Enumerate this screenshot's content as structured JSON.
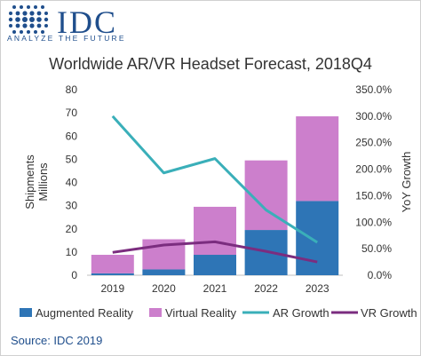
{
  "logo": {
    "word": "IDC",
    "tagline": "ANALYZE THE FUTURE"
  },
  "source": "Source: IDC 2019",
  "colors": {
    "ar": "#2e75b6",
    "vr": "#cc7fcc",
    "ar_growth": "#3aafb9",
    "vr_growth": "#7b2d7f",
    "brand": "#1f4e8c"
  },
  "chart_data": {
    "type": "bar",
    "title": "Worldwide AR/VR Headset Forecast, 2018Q4",
    "categories": [
      "2019",
      "2020",
      "2021",
      "2022",
      "2023"
    ],
    "ylabel": "Shipments\nMillions",
    "y2label": "YoY Growth",
    "ylim": [
      0,
      80
    ],
    "y2lim": [
      0,
      350
    ],
    "yticks": [
      "0",
      "10",
      "20",
      "30",
      "40",
      "50",
      "60",
      "70",
      "80"
    ],
    "y2ticks": [
      "0.0%",
      "50.0%",
      "100.0%",
      "150.0%",
      "200.0%",
      "250.0%",
      "300.0%",
      "350.0%"
    ],
    "stacked": true,
    "series": [
      {
        "name": "Augmented Reality",
        "kind": "bar",
        "axis": "left",
        "values": [
          0.8,
          2.5,
          8.8,
          19.5,
          32.0
        ]
      },
      {
        "name": "Virtual Reality",
        "kind": "bar",
        "axis": "left",
        "values": [
          8.0,
          13.0,
          20.7,
          30.0,
          36.5
        ]
      },
      {
        "name": "AR Growth",
        "kind": "line",
        "axis": "right",
        "values": [
          300,
          193,
          220,
          123,
          62
        ]
      },
      {
        "name": "VR Growth",
        "kind": "line",
        "axis": "right",
        "values": [
          43,
          57,
          63,
          45,
          25
        ]
      }
    ],
    "legend_position": "bottom",
    "grid": false
  }
}
